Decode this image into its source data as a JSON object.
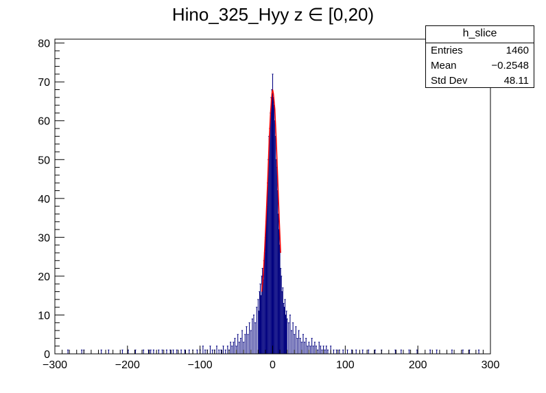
{
  "chart_data": {
    "type": "histogram",
    "title": "Hino_325_Hyy z  ∈ [0,20)",
    "xlabel": "",
    "ylabel": "",
    "xlim": [
      -300,
      300
    ],
    "ylim": [
      0,
      81
    ],
    "x_ticks": [
      -300,
      -200,
      -100,
      0,
      100,
      200,
      300
    ],
    "y_ticks": [
      0,
      10,
      20,
      30,
      40,
      50,
      60,
      70,
      80
    ],
    "bin_width": 1,
    "series": [
      {
        "kind": "histogram",
        "color": "#00007f",
        "bins": [
          [
            -282,
            1
          ],
          [
            -263,
            1
          ],
          [
            -260,
            1
          ],
          [
            -236,
            1
          ],
          [
            -226,
            1
          ],
          [
            -207,
            1
          ],
          [
            -199,
            1
          ],
          [
            -189,
            1
          ],
          [
            -178,
            1
          ],
          [
            -171,
            1
          ],
          [
            -168,
            1
          ],
          [
            -164,
            1
          ],
          [
            -157,
            1
          ],
          [
            -152,
            1
          ],
          [
            -146,
            1
          ],
          [
            -141,
            1
          ],
          [
            -137,
            1
          ],
          [
            -132,
            1
          ],
          [
            -126,
            1
          ],
          [
            -121,
            1
          ],
          [
            -115,
            1
          ],
          [
            -110,
            1
          ],
          [
            -104,
            1
          ],
          [
            -100,
            1
          ],
          [
            -96,
            2
          ],
          [
            -93,
            1
          ],
          [
            -90,
            1
          ],
          [
            -86,
            2
          ],
          [
            -83,
            1
          ],
          [
            -80,
            1
          ],
          [
            -77,
            2
          ],
          [
            -74,
            1
          ],
          [
            -71,
            1
          ],
          [
            -68,
            2
          ],
          [
            -65,
            1
          ],
          [
            -62,
            2
          ],
          [
            -60,
            1
          ],
          [
            -58,
            3
          ],
          [
            -56,
            2
          ],
          [
            -54,
            3
          ],
          [
            -52,
            4
          ],
          [
            -50,
            2
          ],
          [
            -48,
            5
          ],
          [
            -46,
            3
          ],
          [
            -44,
            4
          ],
          [
            -42,
            6
          ],
          [
            -40,
            3
          ],
          [
            -38,
            5
          ],
          [
            -36,
            7
          ],
          [
            -34,
            5
          ],
          [
            -32,
            8
          ],
          [
            -30,
            6
          ],
          [
            -28,
            9
          ],
          [
            -26,
            10
          ],
          [
            -24,
            8
          ],
          [
            -22,
            12
          ],
          [
            -20,
            14
          ],
          [
            -19,
            11
          ],
          [
            -18,
            16
          ],
          [
            -17,
            18
          ],
          [
            -16,
            15
          ],
          [
            -15,
            20
          ],
          [
            -14,
            22
          ],
          [
            -13,
            19
          ],
          [
            -12,
            24
          ],
          [
            -11,
            26
          ],
          [
            -10,
            30
          ],
          [
            -9,
            34
          ],
          [
            -8,
            38
          ],
          [
            -7,
            44
          ],
          [
            -6,
            50
          ],
          [
            -5,
            56
          ],
          [
            -4,
            58
          ],
          [
            -3,
            62
          ],
          [
            -2,
            66
          ],
          [
            -1,
            68
          ],
          [
            0,
            72
          ],
          [
            1,
            66
          ],
          [
            2,
            64
          ],
          [
            3,
            60
          ],
          [
            4,
            56
          ],
          [
            5,
            50
          ],
          [
            6,
            48
          ],
          [
            7,
            42
          ],
          [
            8,
            36
          ],
          [
            9,
            32
          ],
          [
            10,
            28
          ],
          [
            11,
            22
          ],
          [
            12,
            20
          ],
          [
            13,
            16
          ],
          [
            14,
            17
          ],
          [
            15,
            13
          ],
          [
            16,
            12
          ],
          [
            17,
            14
          ],
          [
            18,
            10
          ],
          [
            19,
            11
          ],
          [
            20,
            9
          ],
          [
            22,
            8
          ],
          [
            24,
            10
          ],
          [
            26,
            6
          ],
          [
            28,
            8
          ],
          [
            30,
            5
          ],
          [
            32,
            7
          ],
          [
            34,
            4
          ],
          [
            36,
            6
          ],
          [
            38,
            4
          ],
          [
            40,
            3
          ],
          [
            42,
            5
          ],
          [
            44,
            3
          ],
          [
            46,
            4
          ],
          [
            48,
            2
          ],
          [
            50,
            3
          ],
          [
            52,
            2
          ],
          [
            54,
            4
          ],
          [
            56,
            2
          ],
          [
            58,
            3
          ],
          [
            60,
            2
          ],
          [
            62,
            1
          ],
          [
            64,
            3
          ],
          [
            66,
            2
          ],
          [
            68,
            1
          ],
          [
            70,
            2
          ],
          [
            72,
            1
          ],
          [
            74,
            2
          ],
          [
            76,
            1
          ],
          [
            80,
            2
          ],
          [
            84,
            1
          ],
          [
            88,
            1
          ],
          [
            92,
            1
          ],
          [
            97,
            1
          ],
          [
            103,
            1
          ],
          [
            109,
            1
          ],
          [
            115,
            1
          ],
          [
            124,
            1
          ],
          [
            132,
            1
          ],
          [
            141,
            1
          ],
          [
            150,
            1
          ],
          [
            169,
            1
          ],
          [
            177,
            1
          ],
          [
            188,
            1
          ],
          [
            199,
            1
          ],
          [
            217,
            1
          ],
          [
            226,
            1
          ],
          [
            247,
            1
          ],
          [
            262,
            1
          ],
          [
            271,
            1
          ],
          [
            284,
            1
          ]
        ]
      },
      {
        "kind": "fit",
        "color": "#ff0000",
        "points": [
          [
            -15,
            16
          ],
          [
            -13,
            20
          ],
          [
            -11,
            27
          ],
          [
            -9,
            35
          ],
          [
            -7,
            44
          ],
          [
            -5,
            54
          ],
          [
            -3,
            62
          ],
          [
            -1,
            67
          ],
          [
            0,
            68
          ],
          [
            1,
            67
          ],
          [
            3,
            63
          ],
          [
            5,
            55
          ],
          [
            7,
            45
          ],
          [
            9,
            35
          ],
          [
            11,
            26
          ]
        ]
      }
    ],
    "stats": {
      "name": "h_slice",
      "rows": [
        {
          "label": "Entries",
          "value": "1460"
        },
        {
          "label": "Mean",
          "value": "−0.2548"
        },
        {
          "label": "Std Dev",
          "value": "48.11"
        }
      ]
    }
  }
}
